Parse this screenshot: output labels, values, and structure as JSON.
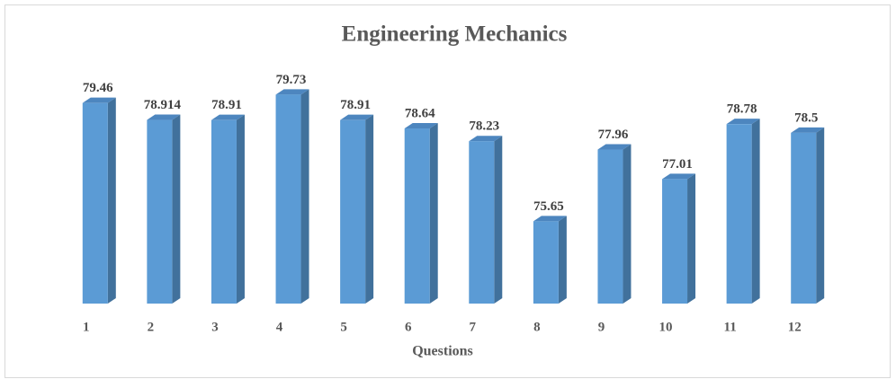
{
  "chart_data": {
    "type": "bar",
    "title": "Engineering Mechanics",
    "x_label": "Questions",
    "categories": [
      "1",
      "2",
      "3",
      "4",
      "5",
      "6",
      "7",
      "8",
      "9",
      "10",
      "11",
      "12"
    ],
    "values": [
      79.46,
      78.914,
      78.91,
      79.73,
      78.91,
      78.64,
      78.23,
      75.65,
      77.96,
      77.01,
      78.78,
      78.5
    ],
    "color": "#5b9bd5",
    "ylim": [
      73,
      80
    ]
  }
}
